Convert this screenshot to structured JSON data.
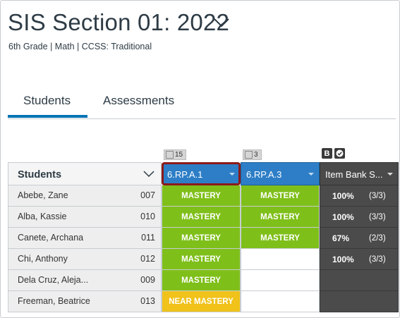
{
  "header": {
    "title": "SIS Section 01: 2022",
    "subtitle": "6th Grade  |  Math  |  CCSS: Traditional"
  },
  "tabs": [
    {
      "label": "Students",
      "active": true
    },
    {
      "label": "Assessments",
      "active": false
    }
  ],
  "badges": {
    "col1_count": "15",
    "col2_count": "3",
    "col3_letter": "B"
  },
  "table": {
    "students_header": "Students",
    "columns": [
      "6.RP.A.1",
      "6.RP.A.3",
      "Item Bank S..."
    ],
    "rows": [
      {
        "name": "Abebe, Zane",
        "id": "007",
        "c1": "MASTERY",
        "c2": "MASTERY",
        "pct": "100%",
        "frac": "(3/3)"
      },
      {
        "name": "Alba, Kassie",
        "id": "010",
        "c1": "MASTERY",
        "c2": "MASTERY",
        "pct": "100%",
        "frac": "(3/3)"
      },
      {
        "name": "Canete, Archana",
        "id": "011",
        "c1": "MASTERY",
        "c2": "MASTERY",
        "pct": "67%",
        "frac": "(2/3)"
      },
      {
        "name": "Chi, Anthony",
        "id": "012",
        "c1": "MASTERY",
        "c2": "",
        "pct": "100%",
        "frac": "(3/3)"
      },
      {
        "name": "Dela Cruz, Aleja...",
        "id": "009",
        "c1": "MASTERY",
        "c2": "",
        "pct": "",
        "frac": ""
      },
      {
        "name": "Freeman, Beatrice",
        "id": "013",
        "c1": "NEAR MASTERY",
        "c2": "",
        "pct": "",
        "frac": ""
      }
    ]
  },
  "colors": {
    "mastery": "#7fbf1a",
    "near_mastery": "#f0c21a",
    "column_header": "#2d7ec6",
    "selected_outline": "#8b1a1a",
    "tab_accent": "#0374b5"
  }
}
